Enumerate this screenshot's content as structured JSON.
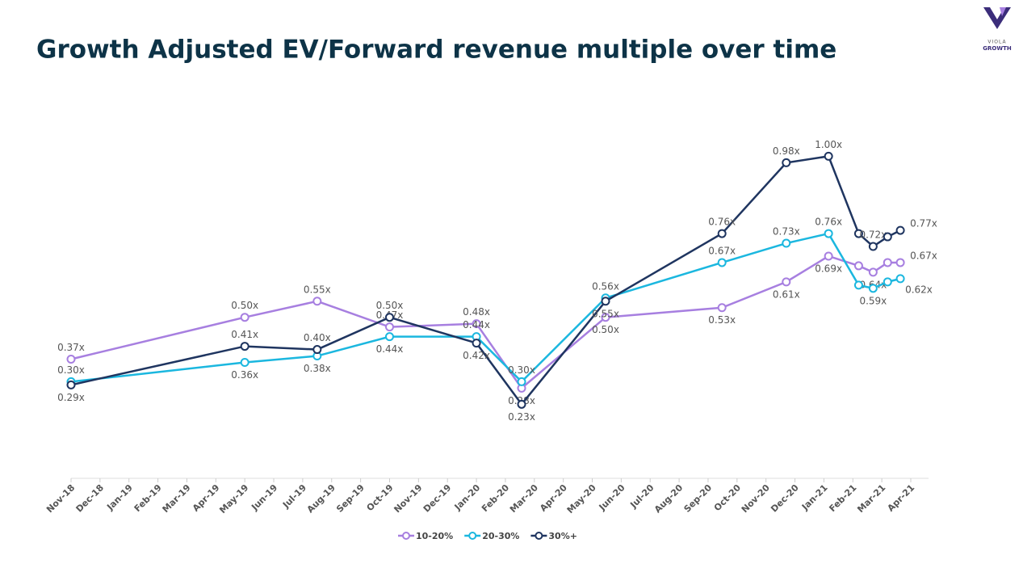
{
  "logo": {
    "top": "VIOLA",
    "bottom": "GROWTH"
  },
  "chart_data": {
    "type": "line",
    "title": "Growth Adjusted EV/Forward revenue multiple over time",
    "xlim": [
      0,
      29
    ],
    "xticks": [
      {
        "value": 0,
        "label": "Nov-18"
      },
      {
        "value": 1,
        "label": "Dec-18"
      },
      {
        "value": 2,
        "label": "Jan-19"
      },
      {
        "value": 3,
        "label": "Feb-19"
      },
      {
        "value": 4,
        "label": "Mar-19"
      },
      {
        "value": 5,
        "label": "Apr-19"
      },
      {
        "value": 6,
        "label": "May-19"
      },
      {
        "value": 7,
        "label": "Jun-19"
      },
      {
        "value": 8,
        "label": "Jul-19"
      },
      {
        "value": 9,
        "label": "Aug-19"
      },
      {
        "value": 10,
        "label": "Sep-19"
      },
      {
        "value": 11,
        "label": "Oct-19"
      },
      {
        "value": 12,
        "label": "Nov-19"
      },
      {
        "value": 13,
        "label": "Dec-19"
      },
      {
        "value": 14,
        "label": "Jan-20"
      },
      {
        "value": 15,
        "label": "Feb-20"
      },
      {
        "value": 16,
        "label": "Mar-20"
      },
      {
        "value": 17,
        "label": "Apr-20"
      },
      {
        "value": 18,
        "label": "May-20"
      },
      {
        "value": 19,
        "label": "Jun-20"
      },
      {
        "value": 20,
        "label": "Jul-20"
      },
      {
        "value": 21,
        "label": "Aug-20"
      },
      {
        "value": 22,
        "label": "Sep-20"
      },
      {
        "value": 23,
        "label": "Oct-20"
      },
      {
        "value": 24,
        "label": "Nov-20"
      },
      {
        "value": 25,
        "label": "Dec-20"
      },
      {
        "value": 26,
        "label": "Jan-21"
      },
      {
        "value": 27,
        "label": "Feb-21"
      },
      {
        "value": 28,
        "label": "Mar-21"
      },
      {
        "value": 29,
        "label": "Apr-21"
      }
    ],
    "ylim": [
      0,
      1.2
    ],
    "x": [
      0,
      6,
      8.5,
      11,
      14,
      15.56,
      18.46,
      22.48,
      24.7,
      26.16,
      27.2,
      27.7,
      28.2,
      28.64
    ],
    "series": [
      {
        "name": "10-20%",
        "color": "#a77fe0",
        "values": [
          0.37,
          0.5,
          0.55,
          0.47,
          0.48,
          0.28,
          0.5,
          0.53,
          0.61,
          0.69,
          0.66,
          0.64,
          0.67,
          0.67
        ],
        "value_labels": [
          "0.37x",
          "0.50x",
          "0.55x",
          "0.47x",
          "0.48x",
          "0.28x",
          "0.50x",
          "0.53x",
          "0.61x",
          "0.69x",
          null,
          "0.64x",
          null,
          "0.67x"
        ]
      },
      {
        "name": "20-30%",
        "color": "#1bb7df",
        "values": [
          0.3,
          0.36,
          0.38,
          0.44,
          0.44,
          0.3,
          0.56,
          0.67,
          0.73,
          0.76,
          0.6,
          0.59,
          0.61,
          0.62
        ],
        "value_labels": [
          "0.30x",
          "0.36x",
          "0.38x",
          "0.44x",
          "0.44x",
          "0.30x",
          "0.56x",
          "0.67x",
          "0.73x",
          "0.76x",
          null,
          "0.59x",
          null,
          "0.62x"
        ]
      },
      {
        "name": "30%+",
        "color": "#1f3560",
        "values": [
          0.29,
          0.41,
          0.4,
          0.5,
          0.42,
          0.23,
          0.55,
          0.76,
          0.98,
          1.0,
          0.76,
          0.72,
          0.75,
          0.77
        ],
        "value_labels": [
          "0.29x",
          "0.41x",
          "0.40x",
          "0.50x",
          "0.42x",
          "0.23x",
          "0.55x",
          "0.76x",
          "0.98x",
          "1.00x",
          null,
          "0.72x",
          null,
          "0.77x"
        ]
      }
    ]
  }
}
